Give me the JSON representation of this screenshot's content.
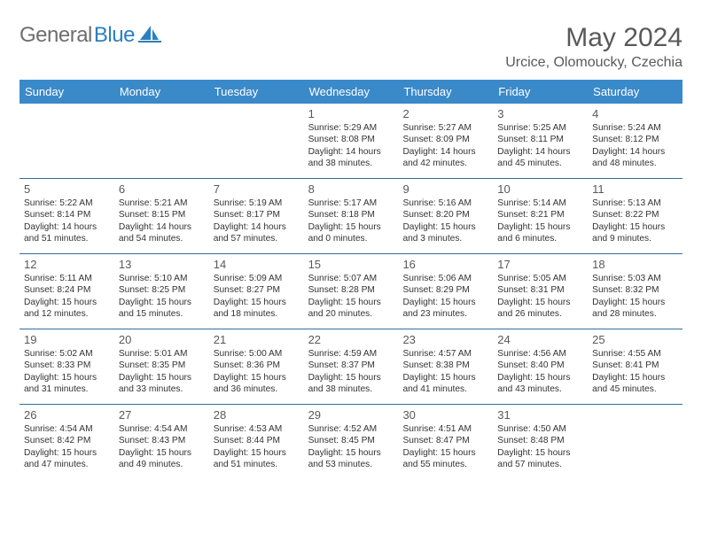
{
  "brand": {
    "name_part1": "General",
    "name_part2": "Blue"
  },
  "title": "May 2024",
  "subtitle": "Urcice, Olomoucky, Czechia",
  "colors": {
    "header_bg": "#3a89c9",
    "header_text": "#ffffff",
    "divider": "#2f6fa0",
    "logo_gray": "#6e6e6e",
    "logo_blue": "#2a7fbf",
    "title_color": "#595959",
    "body_text": "#333333"
  },
  "days_of_week": [
    "Sunday",
    "Monday",
    "Tuesday",
    "Wednesday",
    "Thursday",
    "Friday",
    "Saturday"
  ],
  "weeks": [
    [
      {
        "day": "",
        "lines": []
      },
      {
        "day": "",
        "lines": []
      },
      {
        "day": "",
        "lines": []
      },
      {
        "day": "1",
        "lines": [
          "Sunrise: 5:29 AM",
          "Sunset: 8:08 PM",
          "Daylight: 14 hours",
          "and 38 minutes."
        ]
      },
      {
        "day": "2",
        "lines": [
          "Sunrise: 5:27 AM",
          "Sunset: 8:09 PM",
          "Daylight: 14 hours",
          "and 42 minutes."
        ]
      },
      {
        "day": "3",
        "lines": [
          "Sunrise: 5:25 AM",
          "Sunset: 8:11 PM",
          "Daylight: 14 hours",
          "and 45 minutes."
        ]
      },
      {
        "day": "4",
        "lines": [
          "Sunrise: 5:24 AM",
          "Sunset: 8:12 PM",
          "Daylight: 14 hours",
          "and 48 minutes."
        ]
      }
    ],
    [
      {
        "day": "5",
        "lines": [
          "Sunrise: 5:22 AM",
          "Sunset: 8:14 PM",
          "Daylight: 14 hours",
          "and 51 minutes."
        ]
      },
      {
        "day": "6",
        "lines": [
          "Sunrise: 5:21 AM",
          "Sunset: 8:15 PM",
          "Daylight: 14 hours",
          "and 54 minutes."
        ]
      },
      {
        "day": "7",
        "lines": [
          "Sunrise: 5:19 AM",
          "Sunset: 8:17 PM",
          "Daylight: 14 hours",
          "and 57 minutes."
        ]
      },
      {
        "day": "8",
        "lines": [
          "Sunrise: 5:17 AM",
          "Sunset: 8:18 PM",
          "Daylight: 15 hours",
          "and 0 minutes."
        ]
      },
      {
        "day": "9",
        "lines": [
          "Sunrise: 5:16 AM",
          "Sunset: 8:20 PM",
          "Daylight: 15 hours",
          "and 3 minutes."
        ]
      },
      {
        "day": "10",
        "lines": [
          "Sunrise: 5:14 AM",
          "Sunset: 8:21 PM",
          "Daylight: 15 hours",
          "and 6 minutes."
        ]
      },
      {
        "day": "11",
        "lines": [
          "Sunrise: 5:13 AM",
          "Sunset: 8:22 PM",
          "Daylight: 15 hours",
          "and 9 minutes."
        ]
      }
    ],
    [
      {
        "day": "12",
        "lines": [
          "Sunrise: 5:11 AM",
          "Sunset: 8:24 PM",
          "Daylight: 15 hours",
          "and 12 minutes."
        ]
      },
      {
        "day": "13",
        "lines": [
          "Sunrise: 5:10 AM",
          "Sunset: 8:25 PM",
          "Daylight: 15 hours",
          "and 15 minutes."
        ]
      },
      {
        "day": "14",
        "lines": [
          "Sunrise: 5:09 AM",
          "Sunset: 8:27 PM",
          "Daylight: 15 hours",
          "and 18 minutes."
        ]
      },
      {
        "day": "15",
        "lines": [
          "Sunrise: 5:07 AM",
          "Sunset: 8:28 PM",
          "Daylight: 15 hours",
          "and 20 minutes."
        ]
      },
      {
        "day": "16",
        "lines": [
          "Sunrise: 5:06 AM",
          "Sunset: 8:29 PM",
          "Daylight: 15 hours",
          "and 23 minutes."
        ]
      },
      {
        "day": "17",
        "lines": [
          "Sunrise: 5:05 AM",
          "Sunset: 8:31 PM",
          "Daylight: 15 hours",
          "and 26 minutes."
        ]
      },
      {
        "day": "18",
        "lines": [
          "Sunrise: 5:03 AM",
          "Sunset: 8:32 PM",
          "Daylight: 15 hours",
          "and 28 minutes."
        ]
      }
    ],
    [
      {
        "day": "19",
        "lines": [
          "Sunrise: 5:02 AM",
          "Sunset: 8:33 PM",
          "Daylight: 15 hours",
          "and 31 minutes."
        ]
      },
      {
        "day": "20",
        "lines": [
          "Sunrise: 5:01 AM",
          "Sunset: 8:35 PM",
          "Daylight: 15 hours",
          "and 33 minutes."
        ]
      },
      {
        "day": "21",
        "lines": [
          "Sunrise: 5:00 AM",
          "Sunset: 8:36 PM",
          "Daylight: 15 hours",
          "and 36 minutes."
        ]
      },
      {
        "day": "22",
        "lines": [
          "Sunrise: 4:59 AM",
          "Sunset: 8:37 PM",
          "Daylight: 15 hours",
          "and 38 minutes."
        ]
      },
      {
        "day": "23",
        "lines": [
          "Sunrise: 4:57 AM",
          "Sunset: 8:38 PM",
          "Daylight: 15 hours",
          "and 41 minutes."
        ]
      },
      {
        "day": "24",
        "lines": [
          "Sunrise: 4:56 AM",
          "Sunset: 8:40 PM",
          "Daylight: 15 hours",
          "and 43 minutes."
        ]
      },
      {
        "day": "25",
        "lines": [
          "Sunrise: 4:55 AM",
          "Sunset: 8:41 PM",
          "Daylight: 15 hours",
          "and 45 minutes."
        ]
      }
    ],
    [
      {
        "day": "26",
        "lines": [
          "Sunrise: 4:54 AM",
          "Sunset: 8:42 PM",
          "Daylight: 15 hours",
          "and 47 minutes."
        ]
      },
      {
        "day": "27",
        "lines": [
          "Sunrise: 4:54 AM",
          "Sunset: 8:43 PM",
          "Daylight: 15 hours",
          "and 49 minutes."
        ]
      },
      {
        "day": "28",
        "lines": [
          "Sunrise: 4:53 AM",
          "Sunset: 8:44 PM",
          "Daylight: 15 hours",
          "and 51 minutes."
        ]
      },
      {
        "day": "29",
        "lines": [
          "Sunrise: 4:52 AM",
          "Sunset: 8:45 PM",
          "Daylight: 15 hours",
          "and 53 minutes."
        ]
      },
      {
        "day": "30",
        "lines": [
          "Sunrise: 4:51 AM",
          "Sunset: 8:47 PM",
          "Daylight: 15 hours",
          "and 55 minutes."
        ]
      },
      {
        "day": "31",
        "lines": [
          "Sunrise: 4:50 AM",
          "Sunset: 8:48 PM",
          "Daylight: 15 hours",
          "and 57 minutes."
        ]
      },
      {
        "day": "",
        "lines": []
      }
    ]
  ]
}
